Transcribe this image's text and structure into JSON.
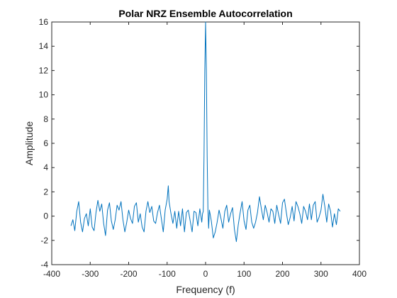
{
  "chart_data": {
    "type": "line",
    "title": "Polar NRZ Ensemble Autocorrelation",
    "xlabel": "Frequency (f)",
    "ylabel": "Amplitude",
    "xlim": [
      -400,
      400
    ],
    "ylim": [
      -4,
      16
    ],
    "xticks": [
      -400,
      -300,
      -200,
      -100,
      0,
      100,
      200,
      300,
      400
    ],
    "yticks": [
      -4,
      -2,
      0,
      2,
      4,
      6,
      8,
      10,
      12,
      14,
      16
    ],
    "grid": false,
    "legend": "none",
    "series": [
      {
        "color": "#0072BD",
        "x": [
          -350,
          -345,
          -340,
          -335,
          -330,
          -325,
          -320,
          -315,
          -310,
          -305,
          -300,
          -295,
          -290,
          -285,
          -280,
          -275,
          -270,
          -265,
          -260,
          -255,
          -250,
          -245,
          -240,
          -235,
          -230,
          -225,
          -220,
          -215,
          -210,
          -205,
          -200,
          -195,
          -190,
          -185,
          -180,
          -175,
          -170,
          -165,
          -160,
          -155,
          -150,
          -145,
          -140,
          -135,
          -130,
          -125,
          -120,
          -115,
          -110,
          -105,
          -100,
          -97,
          -95,
          -90,
          -85,
          -80,
          -75,
          -70,
          -65,
          -60,
          -55,
          -50,
          -45,
          -40,
          -35,
          -30,
          -25,
          -20,
          -15,
          -10,
          -8,
          -6,
          -4,
          -2,
          0,
          2,
          4,
          6,
          8,
          10,
          15,
          20,
          25,
          30,
          35,
          40,
          45,
          50,
          55,
          60,
          65,
          70,
          75,
          80,
          85,
          90,
          95,
          100,
          105,
          110,
          115,
          120,
          125,
          130,
          135,
          140,
          145,
          150,
          155,
          160,
          165,
          170,
          175,
          180,
          185,
          190,
          195,
          200,
          205,
          210,
          215,
          220,
          225,
          230,
          235,
          240,
          245,
          250,
          255,
          260,
          265,
          270,
          275,
          280,
          285,
          290,
          295,
          300,
          305,
          310,
          315,
          320,
          325,
          330,
          335,
          340,
          345,
          350
        ],
        "y": [
          -0.8,
          -0.3,
          -1.2,
          0.4,
          1.2,
          -0.5,
          -1.3,
          -0.2,
          0.2,
          -0.8,
          0.6,
          -0.9,
          -1.2,
          0.3,
          1.3,
          0.4,
          1.0,
          -0.6,
          -1.6,
          0.5,
          1.1,
          -0.4,
          -1.1,
          -0.3,
          0.9,
          0.5,
          1.2,
          -0.3,
          -1.3,
          -0.5,
          0.5,
          -0.2,
          -0.6,
          0.8,
          1.1,
          -0.5,
          0.2,
          -0.9,
          -1.3,
          0.4,
          1.2,
          0.3,
          0.8,
          -0.4,
          -0.6,
          0.3,
          0.9,
          -0.2,
          -1.3,
          0.5,
          1.4,
          2.5,
          1.2,
          0.2,
          -0.6,
          0.4,
          -1.0,
          0.4,
          -0.8,
          0.6,
          -1.3,
          0.3,
          0.5,
          -0.4,
          -1.3,
          0.4,
          0.3,
          -0.8,
          0.6,
          -0.5,
          0.2,
          0.4,
          5.0,
          12.0,
          16.0,
          12.0,
          5.0,
          0.5,
          -1.0,
          0.5,
          -0.4,
          -1.8,
          -1.3,
          -0.5,
          0.5,
          -0.2,
          -1.0,
          0.4,
          0.9,
          -0.5,
          0.2,
          0.7,
          -1.1,
          -2.1,
          -0.7,
          0.3,
          1.2,
          -0.4,
          -1.1,
          0.5,
          0.9,
          -0.5,
          -1.0,
          -0.5,
          0.3,
          1.6,
          0.6,
          -0.3,
          0.9,
          0.3,
          -0.5,
          0.6,
          0.4,
          -0.6,
          0.9,
          0.1,
          -0.6,
          1.1,
          1.4,
          0.3,
          -0.7,
          -0.1,
          0.8,
          -0.4,
          1.2,
          0.8,
          0.2,
          -0.6,
          0.8,
          0.4,
          -0.3,
          1.0,
          -0.3,
          0.9,
          1.2,
          -0.5,
          -0.1,
          0.5,
          1.8,
          0.8,
          -0.5,
          1.0,
          0.4,
          -0.9,
          0.2,
          -0.7,
          0.6,
          0.4
        ]
      }
    ]
  }
}
